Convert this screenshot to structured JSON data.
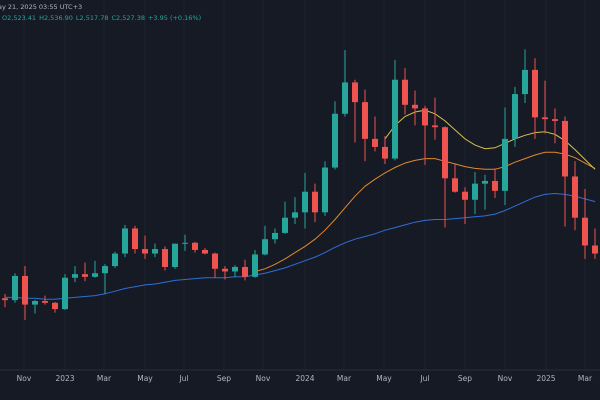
{
  "chart_data": {
    "type": "candlestick",
    "header": "ay 21, 2025 03:55 UTC+3",
    "ohlc_labels": [
      "O2,523.41",
      "H2,536.90",
      "L2,517.78",
      "C2,527.38",
      "+3.95 (+0.16%)"
    ],
    "xlim": [
      -0.5,
      59.5
    ],
    "ylim": [
      520,
      4650
    ],
    "xticks": [
      {
        "value": 1.9,
        "label": "Nov"
      },
      {
        "value": 6,
        "label": "2023"
      },
      {
        "value": 9.9,
        "label": "Mar"
      },
      {
        "value": 14,
        "label": "May"
      },
      {
        "value": 17.9,
        "label": "Jul"
      },
      {
        "value": 21.9,
        "label": "Sep"
      },
      {
        "value": 25.8,
        "label": "Nov"
      },
      {
        "value": 30,
        "label": "2024"
      },
      {
        "value": 33.9,
        "label": "Mar"
      },
      {
        "value": 37.9,
        "label": "May"
      },
      {
        "value": 42,
        "label": "Jul"
      },
      {
        "value": 46,
        "label": "Sep"
      },
      {
        "value": 50,
        "label": "Nov"
      },
      {
        "value": 54.1,
        "label": "2025"
      },
      {
        "value": 58,
        "label": "Mar"
      }
    ],
    "grid": true,
    "up_color": "#26a69a",
    "down_color": "#ef5350",
    "open": [
      1320,
      1300,
      1570,
      1250,
      1290,
      1270,
      1200,
      1550,
      1590,
      1560,
      1600,
      1680,
      1820,
      2100,
      1870,
      1820,
      1870,
      1670,
      1930,
      1940,
      1860,
      1820,
      1650,
      1620,
      1670,
      1560,
      1810,
      1980,
      2050,
      2220,
      2280,
      2510,
      2280,
      2780,
      3380,
      3730,
      3510,
      3100,
      3010,
      2880,
      3760,
      3480,
      3440,
      3250,
      3230,
      2660,
      2510,
      2420,
      2600,
      2630,
      2520,
      3100,
      3600,
      3870,
      3340,
      3320,
      3300,
      2680,
      2220,
      1910
    ],
    "high": [
      1370,
      1600,
      1680,
      1300,
      1350,
      1280,
      1590,
      1680,
      1720,
      1740,
      1700,
      1840,
      2140,
      2130,
      2020,
      1930,
      1900,
      1930,
      2030,
      1950,
      1880,
      1830,
      1680,
      1690,
      1750,
      1860,
      2130,
      2100,
      2400,
      2450,
      2720,
      2600,
      2850,
      3520,
      4090,
      3760,
      3650,
      3350,
      3130,
      3980,
      3890,
      3640,
      3470,
      3560,
      3240,
      2820,
      2560,
      2730,
      2700,
      2770,
      3450,
      3680,
      4100,
      4000,
      3750,
      3440,
      3350,
      2850,
      2540,
      2100
    ],
    "low": [
      1220,
      1270,
      1080,
      1150,
      1250,
      1160,
      1190,
      1500,
      1510,
      1550,
      1370,
      1660,
      1780,
      1820,
      1760,
      1780,
      1630,
      1650,
      1850,
      1830,
      1810,
      1550,
      1530,
      1560,
      1520,
      1550,
      1800,
      1930,
      2040,
      2150,
      2100,
      2170,
      2240,
      2760,
      3350,
      3060,
      2850,
      2960,
      2820,
      2860,
      3370,
      3250,
      2810,
      3090,
      2110,
      2500,
      2150,
      2260,
      2310,
      2440,
      2360,
      3010,
      3500,
      3100,
      3160,
      3050,
      2120,
      2080,
      1760,
      1760
    ],
    "close": [
      1300,
      1570,
      1250,
      1290,
      1270,
      1200,
      1550,
      1590,
      1560,
      1600,
      1680,
      1820,
      2100,
      1870,
      1820,
      1870,
      1670,
      1930,
      1940,
      1860,
      1820,
      1650,
      1620,
      1670,
      1560,
      1810,
      1980,
      2050,
      2220,
      2280,
      2510,
      2280,
      2780,
      3380,
      3730,
      3510,
      3100,
      3010,
      2880,
      3760,
      3480,
      3440,
      3250,
      3230,
      2660,
      2510,
      2420,
      2600,
      2630,
      2520,
      3100,
      3600,
      3870,
      3340,
      3320,
      3300,
      2680,
      2220,
      1910,
      1820
    ],
    "lines": [
      {
        "color": "#2f6fd6",
        "values": [
          1330,
          1330,
          1320,
          1320,
          1310,
          1310,
          1320,
          1330,
          1340,
          1350,
          1370,
          1400,
          1430,
          1450,
          1470,
          1480,
          1500,
          1520,
          1530,
          1540,
          1550,
          1550,
          1550,
          1560,
          1560,
          1580,
          1600,
          1630,
          1660,
          1700,
          1740,
          1780,
          1830,
          1890,
          1940,
          1980,
          2010,
          2040,
          2080,
          2110,
          2140,
          2170,
          2190,
          2200,
          2200,
          2210,
          2220,
          2230,
          2240,
          2260,
          2300,
          2350,
          2400,
          2450,
          2480,
          2490,
          2480,
          2460,
          2430,
          2400
        ]
      },
      {
        "color": "#e08a2b",
        "values": [
          null,
          null,
          null,
          null,
          null,
          null,
          null,
          null,
          null,
          null,
          null,
          null,
          null,
          null,
          null,
          null,
          null,
          null,
          null,
          null,
          null,
          null,
          null,
          null,
          null,
          1620,
          1650,
          1700,
          1760,
          1830,
          1900,
          1980,
          2080,
          2200,
          2330,
          2460,
          2570,
          2650,
          2720,
          2780,
          2830,
          2860,
          2880,
          2880,
          2850,
          2820,
          2790,
          2770,
          2760,
          2760,
          2790,
          2840,
          2880,
          2920,
          2950,
          2950,
          2930,
          2890,
          2830,
          2770
        ]
      },
      {
        "color": "#d8c24a",
        "values": [
          null,
          null,
          null,
          null,
          null,
          null,
          null,
          null,
          null,
          null,
          null,
          null,
          null,
          null,
          null,
          null,
          null,
          null,
          null,
          null,
          null,
          null,
          null,
          null,
          null,
          null,
          null,
          null,
          null,
          null,
          null,
          null,
          null,
          null,
          null,
          null,
          null,
          null,
          3100,
          3250,
          3350,
          3400,
          3420,
          3380,
          3300,
          3200,
          3100,
          3030,
          2990,
          3000,
          3050,
          3100,
          3140,
          3170,
          3180,
          3150,
          3080,
          2980,
          2870,
          2760
        ]
      }
    ]
  }
}
